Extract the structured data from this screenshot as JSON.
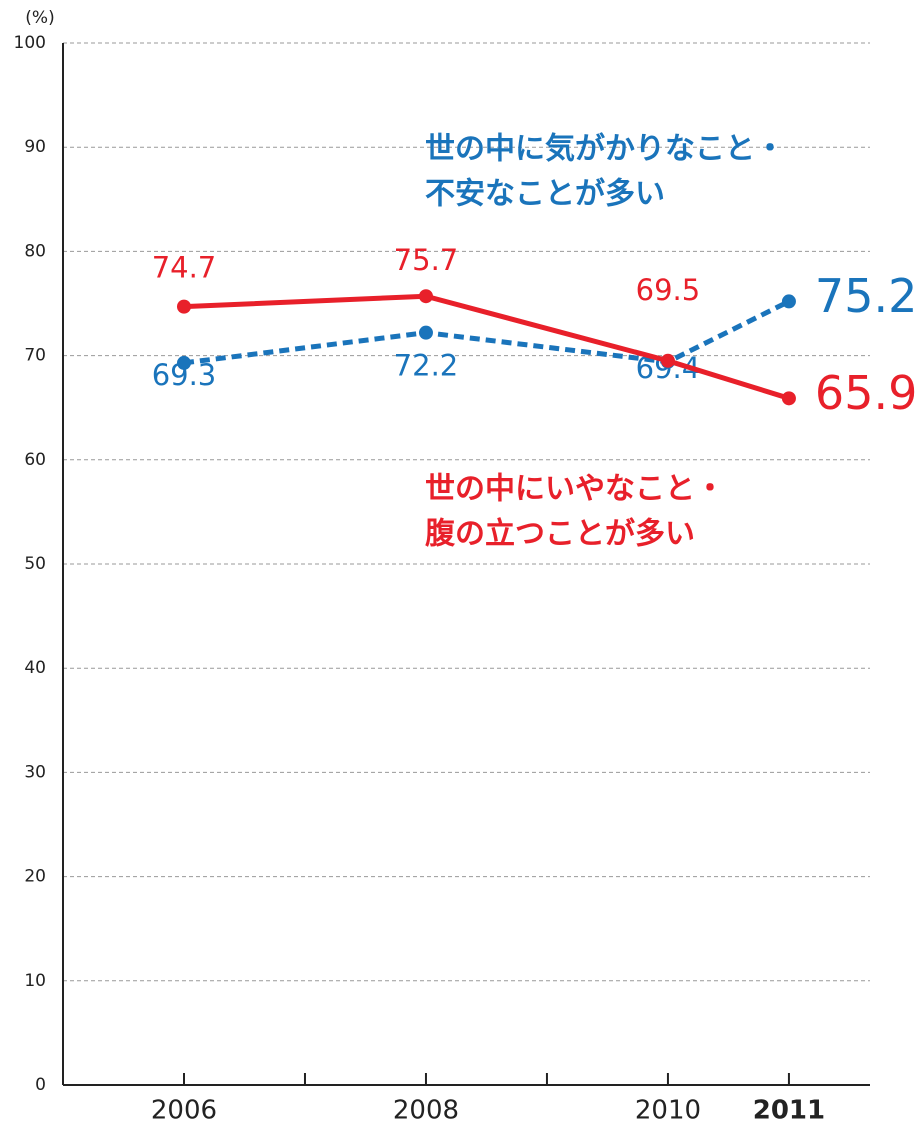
{
  "chart_data": {
    "type": "line",
    "y_unit": "(%)",
    "x": [
      2006,
      2008,
      2010,
      2011
    ],
    "xlim": [
      2005,
      2011.67
    ],
    "xticks": [
      2006,
      2008,
      2010,
      2011
    ],
    "x_minor_ticks": [
      2007,
      2009
    ],
    "highlight_x": 2011,
    "ylim": [
      0,
      100
    ],
    "yticks": [
      0,
      10,
      20,
      30,
      40,
      50,
      60,
      70,
      80,
      90,
      100
    ],
    "grid": true,
    "series": [
      {
        "name": [
          "世の中に気がかりなこと・",
          "不安なことが多い"
        ],
        "color": "#1a74bb",
        "dashed": true,
        "values": [
          69.3,
          72.2,
          69.4,
          75.2
        ]
      },
      {
        "name": [
          "世の中にいやなこと・",
          "腹の立つことが多い"
        ],
        "color": "#e8202a",
        "dashed": false,
        "values": [
          74.7,
          75.7,
          69.5,
          65.9
        ]
      }
    ]
  }
}
